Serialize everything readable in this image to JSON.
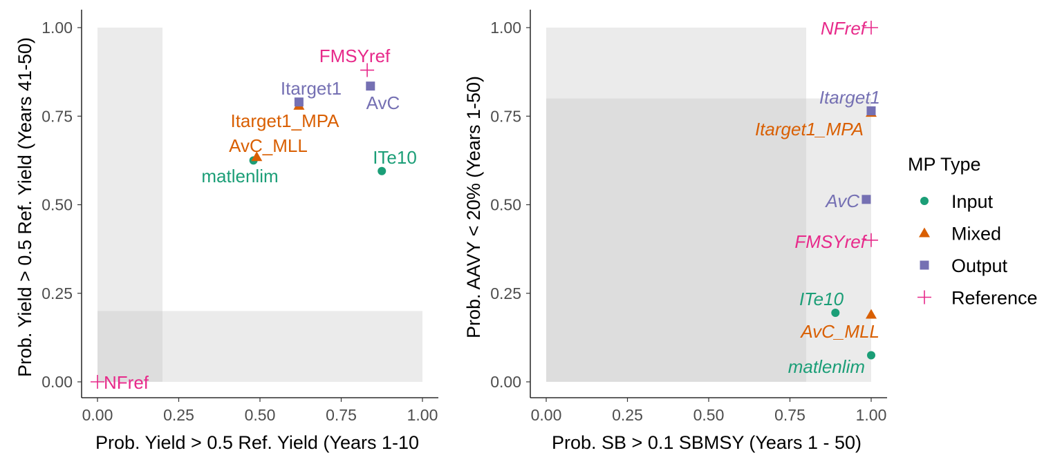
{
  "legend": {
    "title": "MP Type",
    "items": [
      {
        "name": "Input",
        "color": "#1b9e77",
        "shape": "circle"
      },
      {
        "name": "Mixed",
        "color": "#d95f02",
        "shape": "triangle"
      },
      {
        "name": "Output",
        "color": "#7570b3",
        "shape": "square"
      },
      {
        "name": "Reference",
        "color": "#e7298a",
        "shape": "plus"
      }
    ]
  },
  "chart_data": [
    {
      "type": "scatter",
      "xlabel": "Prob. Yield > 0.5 Ref. Yield (Years 1-10",
      "ylabel": "Prob. Yield > 0.5 Ref. Yield (Years 41-50)",
      "xlim": [
        0,
        1
      ],
      "ylim": [
        0,
        1
      ],
      "xticks": [
        "0.00",
        "0.25",
        "0.50",
        "0.75",
        "1.00"
      ],
      "yticks": [
        "0.00",
        "0.25",
        "0.50",
        "0.75",
        "1.00"
      ],
      "label_style": "normal",
      "grid": false,
      "shaded_regions": [
        {
          "x": [
            0,
            0.2
          ],
          "y": [
            0,
            1
          ]
        },
        {
          "x": [
            0,
            1
          ],
          "y": [
            0,
            0.2
          ]
        }
      ],
      "points": [
        {
          "name": "matlenlim",
          "type": "Input",
          "x": 0.48,
          "y": 0.625
        },
        {
          "name": "ITe10",
          "type": "Input",
          "x": 0.875,
          "y": 0.595
        },
        {
          "name": "AvC_MLL",
          "type": "Mixed",
          "x": 0.49,
          "y": 0.635
        },
        {
          "name": "Itarget1_MPA",
          "type": "Mixed",
          "x": 0.62,
          "y": 0.78
        },
        {
          "name": "Itarget1",
          "type": "Output",
          "x": 0.62,
          "y": 0.79
        },
        {
          "name": "AvC",
          "type": "Output",
          "x": 0.84,
          "y": 0.835
        },
        {
          "name": "FMSYref",
          "type": "Reference",
          "x": 0.83,
          "y": 0.88
        },
        {
          "name": "NFref",
          "type": "Reference",
          "x": 0.0,
          "y": 0.0
        }
      ]
    },
    {
      "type": "scatter",
      "xlabel": "Prob. SB > 0.1 SBMSY (Years 1 - 50)",
      "ylabel": "Prob. AAVY < 20% (Years 1-50)",
      "xlim": [
        0,
        1
      ],
      "ylim": [
        0,
        1
      ],
      "xticks": [
        "0.00",
        "0.25",
        "0.50",
        "0.75",
        "1.00"
      ],
      "yticks": [
        "0.00",
        "0.25",
        "0.50",
        "0.75",
        "1.00"
      ],
      "label_style": "italic",
      "grid": false,
      "shaded_regions": [
        {
          "x": [
            0,
            0.8
          ],
          "y": [
            0,
            1
          ]
        },
        {
          "x": [
            0,
            1
          ],
          "y": [
            0,
            0.8
          ]
        }
      ],
      "points": [
        {
          "name": "matlenlim",
          "type": "Input",
          "x": 1.0,
          "y": 0.075
        },
        {
          "name": "ITe10",
          "type": "Input",
          "x": 0.89,
          "y": 0.195
        },
        {
          "name": "AvC_MLL",
          "type": "Mixed",
          "x": 1.0,
          "y": 0.19
        },
        {
          "name": "Itarget1_MPA",
          "type": "Mixed",
          "x": 1.0,
          "y": 0.76
        },
        {
          "name": "Itarget1",
          "type": "Output",
          "x": 1.0,
          "y": 0.765
        },
        {
          "name": "AvC",
          "type": "Output",
          "x": 0.985,
          "y": 0.515
        },
        {
          "name": "FMSYref",
          "type": "Reference",
          "x": 1.0,
          "y": 0.4
        },
        {
          "name": "NFref",
          "type": "Reference",
          "x": 1.0,
          "y": 1.0
        }
      ]
    }
  ]
}
